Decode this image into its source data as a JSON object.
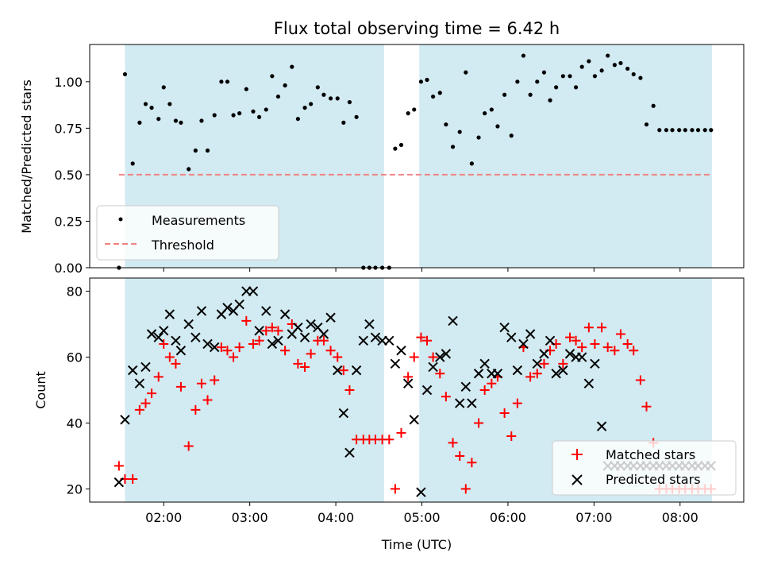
{
  "chart_data": {
    "type": "scatter",
    "title": "Flux total observing time = 6.42 h",
    "xlabel": "Time (UTC)",
    "x_tick_labels": [
      "02:00",
      "03:00",
      "04:00",
      "05:00",
      "06:00",
      "07:00",
      "08:00"
    ],
    "x_tick_values_hours": [
      2,
      3,
      4,
      5,
      6,
      7,
      8
    ],
    "xlim_hours": [
      1.14,
      8.74
    ],
    "shaded_intervals_hours": [
      [
        1.55,
        4.56
      ],
      [
        4.97,
        8.37
      ]
    ],
    "shade_color": "#add8e6",
    "panels": [
      {
        "ylabel": "Matched/Predicted stars",
        "ylim": [
          0,
          1.2
        ],
        "y_tick_labels": [
          "0.00",
          "0.25",
          "0.50",
          "0.75",
          "1.00"
        ],
        "y_tick_values": [
          0,
          0.25,
          0.5,
          0.75,
          1.0
        ],
        "legend_position": "lower-left",
        "series": [
          {
            "name": "Measurements",
            "marker": "dot",
            "color": "#000000",
            "x": [
              1.48,
              1.55,
              1.64,
              1.72,
              1.79,
              1.86,
              1.94,
              2.0,
              2.07,
              2.14,
              2.2,
              2.29,
              2.37,
              2.44,
              2.51,
              2.59,
              2.67,
              2.74,
              2.81,
              2.88,
              2.96,
              3.04,
              3.11,
              3.19,
              3.26,
              3.33,
              3.41,
              3.49,
              3.56,
              3.64,
              3.71,
              3.79,
              3.86,
              3.94,
              4.02,
              4.09,
              4.16,
              4.24,
              4.32,
              4.39,
              4.46,
              4.54,
              4.62,
              4.69,
              4.76,
              4.84,
              4.91,
              4.99,
              5.06,
              5.13,
              5.21,
              5.28,
              5.36,
              5.44,
              5.51,
              5.58,
              5.66,
              5.73,
              5.81,
              5.88,
              5.96,
              6.04,
              6.11,
              6.18,
              6.26,
              6.34,
              6.42,
              6.49,
              6.56,
              6.64,
              6.72,
              6.79,
              6.86,
              6.94,
              7.01,
              7.09,
              7.16,
              7.24,
              7.31,
              7.39,
              7.46,
              7.54,
              7.61,
              7.69,
              7.76,
              7.84,
              7.91,
              7.99,
              8.06,
              8.14,
              8.21,
              8.29,
              8.36
            ],
            "y": [
              0.0,
              1.04,
              0.56,
              0.78,
              0.88,
              0.86,
              0.8,
              0.97,
              0.88,
              0.79,
              0.78,
              0.53,
              0.63,
              0.79,
              0.63,
              0.82,
              1.0,
              1.0,
              0.82,
              0.83,
              0.96,
              0.84,
              0.81,
              0.85,
              1.03,
              0.92,
              0.98,
              1.08,
              0.8,
              0.86,
              0.88,
              0.97,
              0.93,
              0.91,
              0.91,
              0.78,
              0.89,
              0.81,
              0.0,
              0.0,
              0.0,
              0.0,
              0.0,
              0.64,
              0.66,
              0.83,
              0.85,
              1.0,
              1.01,
              0.92,
              0.94,
              0.77,
              0.65,
              0.73,
              1.05,
              0.56,
              0.7,
              0.83,
              0.85,
              0.76,
              0.93,
              0.71,
              1.0,
              1.14,
              0.93,
              1.0,
              1.05,
              0.9,
              0.97,
              1.03,
              1.03,
              0.97,
              1.08,
              1.11,
              1.03,
              1.06,
              1.14,
              1.09,
              1.1,
              1.07,
              1.04,
              1.02,
              0.77,
              0.87,
              0.74,
              0.74,
              0.74,
              0.74,
              0.74,
              0.74,
              0.74,
              0.74,
              0.74
            ]
          },
          {
            "name": "Threshold",
            "marker": "dashed-line",
            "color": "#f08080",
            "x": [
              1.48,
              8.36
            ],
            "y": [
              0.5,
              0.5
            ]
          }
        ]
      },
      {
        "ylabel": "Count",
        "ylim": [
          16,
          84
        ],
        "y_tick_labels": [
          "20",
          "40",
          "60",
          "80"
        ],
        "y_tick_values": [
          20,
          40,
          60,
          80
        ],
        "legend_position": "lower-right",
        "series": [
          {
            "name": "Matched stars",
            "marker": "plus",
            "color": "#ff0000",
            "x": [
              1.48,
              1.55,
              1.64,
              1.72,
              1.79,
              1.86,
              1.94,
              2.0,
              2.07,
              2.14,
              2.2,
              2.29,
              2.37,
              2.44,
              2.51,
              2.59,
              2.67,
              2.74,
              2.81,
              2.88,
              2.96,
              3.04,
              3.11,
              3.19,
              3.26,
              3.33,
              3.41,
              3.49,
              3.56,
              3.64,
              3.71,
              3.79,
              3.86,
              3.94,
              4.02,
              4.09,
              4.16,
              4.24,
              4.32,
              4.39,
              4.46,
              4.54,
              4.62,
              4.69,
              4.76,
              4.84,
              4.91,
              4.99,
              5.06,
              5.13,
              5.21,
              5.28,
              5.36,
              5.44,
              5.51,
              5.58,
              5.66,
              5.73,
              5.81,
              5.88,
              5.96,
              6.04,
              6.11,
              6.18,
              6.26,
              6.34,
              6.42,
              6.49,
              6.56,
              6.64,
              6.72,
              6.79,
              6.86,
              6.94,
              7.01,
              7.09,
              7.16,
              7.24,
              7.31,
              7.39,
              7.46,
              7.54,
              7.61,
              7.69,
              7.76,
              7.84,
              7.91,
              7.99,
              8.06,
              8.14,
              8.21,
              8.29,
              8.36
            ],
            "y": [
              27,
              23,
              23,
              44,
              46,
              49,
              54,
              64,
              60,
              58,
              51,
              33,
              44,
              52,
              47,
              53,
              63,
              62,
              60,
              63,
              71,
              64,
              65,
              68,
              69,
              68,
              62,
              70,
              58,
              57,
              61,
              65,
              65,
              62,
              60,
              56,
              50,
              35,
              35,
              35,
              35,
              35,
              35,
              20,
              37,
              54,
              60,
              66,
              65,
              60,
              55,
              48,
              34,
              30,
              20,
              28,
              40,
              50,
              52,
              54,
              43,
              36,
              46,
              63,
              54,
              55,
              58,
              62,
              64,
              58,
              66,
              65,
              63,
              69,
              64,
              69,
              63,
              62,
              67,
              64,
              62,
              53,
              45,
              34,
              20,
              20,
              20,
              20,
              20,
              20,
              20,
              20,
              20
            ]
          },
          {
            "name": "Predicted stars",
            "marker": "x",
            "color": "#000000",
            "x": [
              1.48,
              1.55,
              1.64,
              1.72,
              1.79,
              1.86,
              1.94,
              2.0,
              2.07,
              2.14,
              2.2,
              2.29,
              2.37,
              2.44,
              2.51,
              2.59,
              2.67,
              2.74,
              2.81,
              2.88,
              2.96,
              3.04,
              3.11,
              3.19,
              3.26,
              3.33,
              3.41,
              3.49,
              3.56,
              3.64,
              3.71,
              3.79,
              3.86,
              3.94,
              4.02,
              4.09,
              4.16,
              4.24,
              4.32,
              4.39,
              4.46,
              4.54,
              4.62,
              4.69,
              4.76,
              4.84,
              4.91,
              4.99,
              5.06,
              5.13,
              5.21,
              5.28,
              5.36,
              5.44,
              5.51,
              5.58,
              5.66,
              5.73,
              5.81,
              5.88,
              5.96,
              6.04,
              6.11,
              6.18,
              6.26,
              6.34,
              6.42,
              6.49,
              6.56,
              6.64,
              6.72,
              6.79,
              6.86,
              6.94,
              7.01,
              7.09,
              7.16,
              7.24,
              7.31,
              7.39,
              7.46,
              7.54,
              7.61,
              7.69,
              7.76,
              7.84,
              7.91,
              7.99,
              8.06,
              8.14,
              8.21,
              8.29,
              8.36
            ],
            "y": [
              22,
              41,
              56,
              52,
              57,
              67,
              66,
              68,
              73,
              65,
              62,
              70,
              66,
              74,
              64,
              63,
              73,
              75,
              74,
              76,
              80,
              80,
              68,
              74,
              64,
              65,
              73,
              67,
              69,
              66,
              70,
              69,
              67,
              72,
              56,
              43,
              31,
              56,
              65,
              70,
              66,
              65,
              65,
              58,
              62,
              52,
              41,
              19,
              50,
              57,
              60,
              61,
              71,
              46,
              51,
              46,
              55,
              58,
              55,
              55,
              69,
              66,
              56,
              64,
              67,
              58,
              61,
              65,
              55,
              56,
              61,
              60,
              60,
              52,
              58,
              39,
              27,
              27,
              27,
              27,
              27,
              27,
              27,
              27,
              27,
              27,
              27,
              27,
              27,
              27,
              27,
              27,
              27
            ]
          }
        ]
      }
    ]
  }
}
